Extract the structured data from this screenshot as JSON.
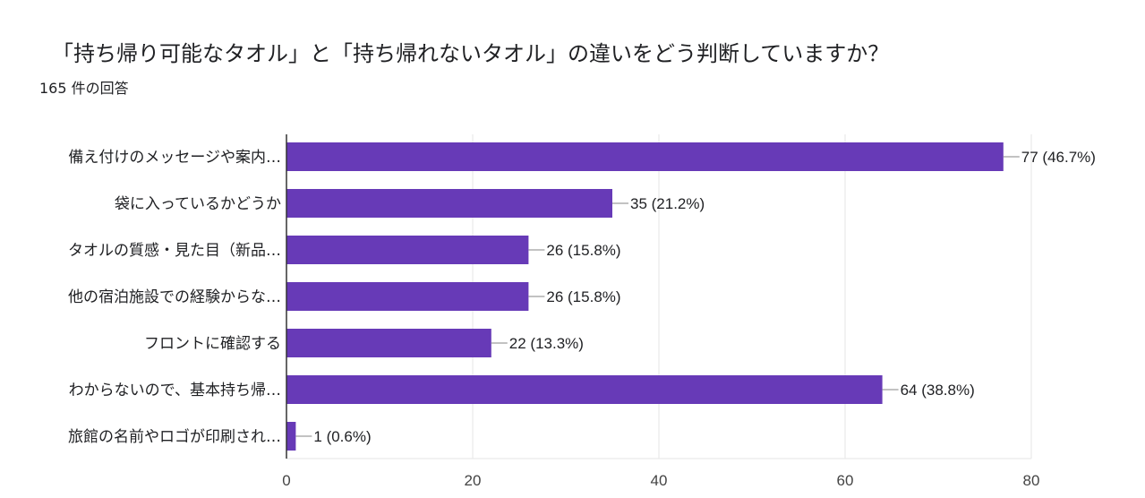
{
  "header": {
    "title": "「持ち帰り可能なタオル」と「持ち帰れないタオル」の違いをどう判断していますか？",
    "response_count": "165 件の回答"
  },
  "chart_data": {
    "type": "bar",
    "orientation": "horizontal",
    "title": "「持ち帰り可能なタオル」と「持ち帰れないタオル」の違いをどう判断していますか？",
    "subtitle": "165 件の回答",
    "categories": [
      "備え付けのメッセージや案内…",
      "袋に入っているかどうか",
      "タオルの質感・見た目（新品…",
      "他の宿泊施設での経験からな…",
      "フロントに確認する",
      "わからないので、基本持ち帰…",
      "旅館の名前やロゴが印刷され…"
    ],
    "values": [
      77,
      35,
      26,
      26,
      22,
      64,
      1
    ],
    "value_labels": [
      "77 (46.7%)",
      "35 (21.2%)",
      "26 (15.8%)",
      "26 (15.8%)",
      "22 (13.3%)",
      "64 (38.8%)",
      "1 (0.6%)"
    ],
    "xlim": [
      0,
      80
    ],
    "xticks": [
      0,
      20,
      40,
      60,
      80
    ],
    "grid": true,
    "bar_color": "#673ab7",
    "grid_color": "#e6e6e6",
    "axis_color": "#333333",
    "leader_color": "#9e9e9e"
  }
}
